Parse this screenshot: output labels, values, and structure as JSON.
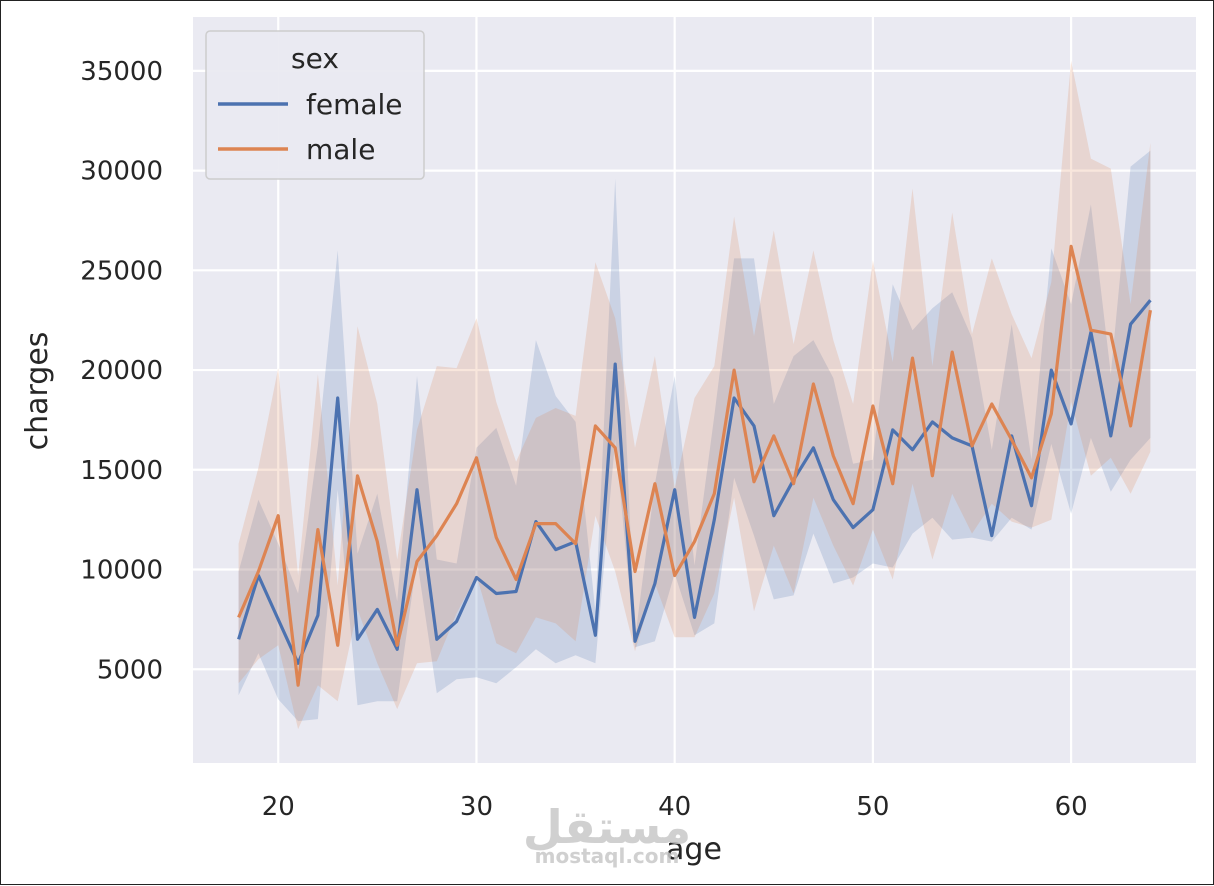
{
  "chart_data": {
    "type": "line",
    "title": "",
    "xlabel": "age",
    "ylabel": "charges",
    "xlim": [
      15.7,
      66.3
    ],
    "ylim": [
      300,
      37700
    ],
    "xticks": [
      20,
      30,
      40,
      50,
      60
    ],
    "yticks": [
      5000,
      10000,
      15000,
      20000,
      25000,
      30000,
      35000
    ],
    "grid": true,
    "legend": {
      "title": "sex",
      "placement": "top-left"
    },
    "x": [
      18,
      19,
      20,
      21,
      22,
      23,
      24,
      25,
      26,
      27,
      28,
      29,
      30,
      31,
      32,
      33,
      34,
      35,
      36,
      37,
      38,
      39,
      40,
      41,
      42,
      43,
      44,
      45,
      46,
      47,
      48,
      49,
      50,
      51,
      52,
      53,
      54,
      55,
      56,
      57,
      58,
      59,
      60,
      61,
      62,
      63,
      64
    ],
    "series": [
      {
        "name": "female",
        "color": "#4c72b0",
        "values": [
          6500,
          9700,
          7500,
          5300,
          7700,
          18600,
          6500,
          8000,
          6000,
          14000,
          6500,
          7400,
          9600,
          8800,
          8900,
          12400,
          11000,
          11400,
          6700,
          20300,
          6400,
          9300,
          14000,
          7600,
          12500,
          18600,
          17200,
          12700,
          14500,
          16100,
          13500,
          12100,
          13000,
          17000,
          16000,
          17400,
          16600,
          16200,
          11700,
          16700,
          13200,
          20000,
          17300,
          21900,
          16700,
          22300,
          23500
        ],
        "ci_low": [
          3700,
          5800,
          3500,
          2400,
          2500,
          14000,
          3200,
          3400,
          3400,
          10500,
          3800,
          4500,
          4600,
          4300,
          5100,
          6000,
          5300,
          5700,
          5300,
          16500,
          6100,
          6400,
          9800,
          6700,
          7300,
          14600,
          11700,
          8500,
          8700,
          11800,
          9300,
          9600,
          10300,
          10100,
          11800,
          12600,
          11500,
          11600,
          11400,
          12600,
          12000,
          16300,
          12800,
          16600,
          13900,
          15500,
          16600
        ],
        "ci_high": [
          9900,
          13500,
          11300,
          8800,
          16200,
          26000,
          10800,
          13800,
          8400,
          19700,
          10500,
          10300,
          16100,
          17100,
          14200,
          21500,
          18700,
          17400,
          7900,
          29600,
          6500,
          14300,
          19700,
          10200,
          17700,
          25600,
          25600,
          18300,
          20700,
          21500,
          19600,
          15300,
          15500,
          24300,
          22000,
          23100,
          23900,
          21600,
          16000,
          22300,
          15500,
          26100,
          23300,
          28300,
          19800,
          30200,
          31000
        ]
      },
      {
        "name": "male",
        "color": "#dd8452",
        "values": [
          7600,
          9900,
          12700,
          4200,
          12000,
          6200,
          14700,
          11400,
          6200,
          10400,
          11700,
          13300,
          15600,
          11600,
          9500,
          12300,
          12300,
          11300,
          17200,
          16100,
          9900,
          14300,
          9700,
          11400,
          13800,
          20000,
          14400,
          16700,
          14300,
          19300,
          15700,
          13300,
          18200,
          14300,
          20600,
          14700,
          20900,
          16200,
          18300,
          16500,
          14600,
          17800,
          26200,
          22000,
          21800,
          17200,
          23000
        ],
        "ci_low": [
          4300,
          5500,
          6200,
          2000,
          4200,
          3400,
          8000,
          5300,
          3000,
          5300,
          5400,
          7800,
          9700,
          6300,
          5800,
          7600,
          7300,
          6400,
          12700,
          9900,
          5900,
          9300,
          6600,
          6600,
          8800,
          13600,
          7900,
          11200,
          8800,
          13600,
          11200,
          9200,
          12000,
          9500,
          14300,
          10500,
          13800,
          11800,
          13300,
          12400,
          12100,
          12500,
          18400,
          14700,
          15600,
          13800,
          15900
        ],
        "ci_high": [
          11300,
          15100,
          20100,
          9700,
          19800,
          9200,
          22200,
          18300,
          10500,
          17000,
          20200,
          20100,
          22600,
          18400,
          15400,
          17600,
          18100,
          17700,
          25400,
          22600,
          16100,
          20700,
          14100,
          18600,
          20200,
          27700,
          21700,
          27000,
          21300,
          26000,
          21500,
          18300,
          25500,
          20400,
          29100,
          20200,
          27900,
          21800,
          25600,
          22800,
          20600,
          24400,
          35500,
          30600,
          30100,
          23300,
          31400
        ]
      }
    ]
  },
  "watermark": {
    "arabic": "مستقل",
    "latin": "mostaql.com"
  }
}
